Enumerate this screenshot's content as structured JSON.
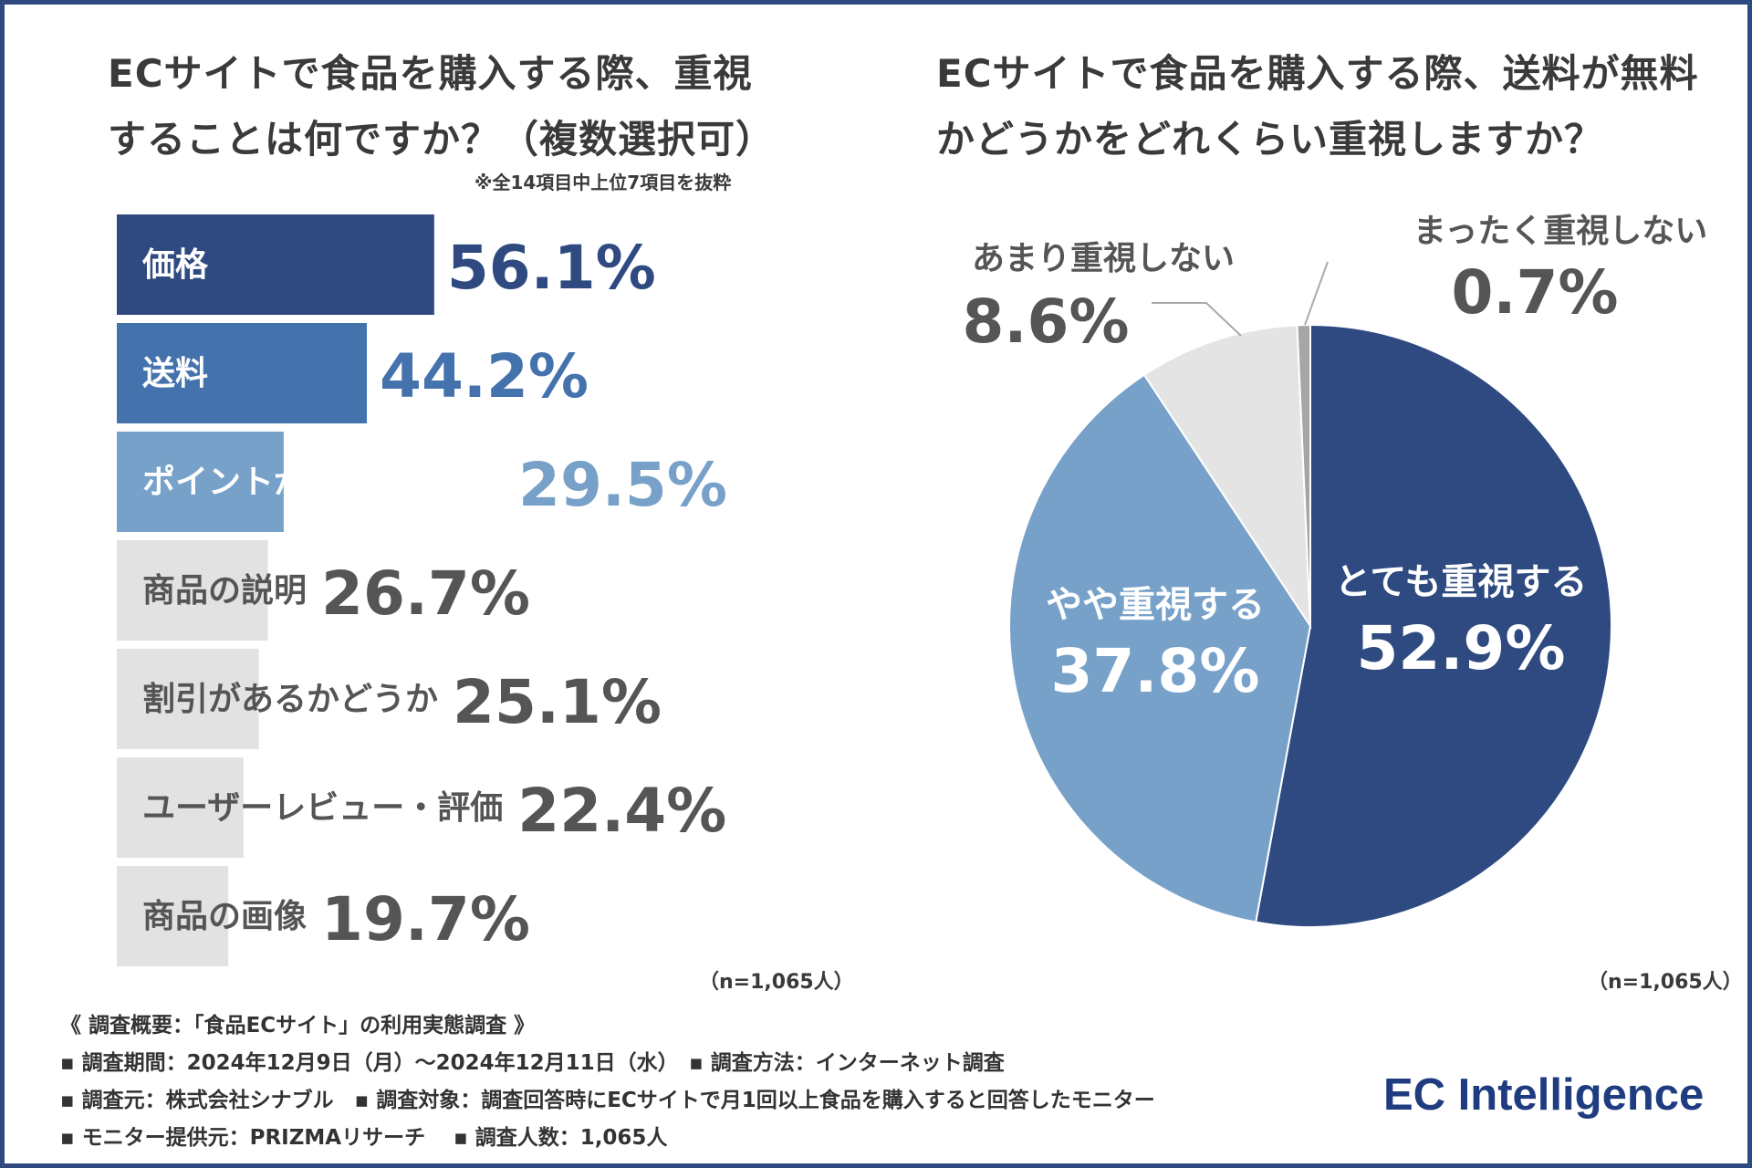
{
  "colors": {
    "frame": "#2e4a80",
    "dark_blue": "#2e4a80",
    "mid_blue": "#4472ad",
    "light_blue": "#77a1c9",
    "gray": "#e2e2e2",
    "very_light_gray": "#e4e4e4",
    "mid_gray": "#a6a6a6",
    "text_dark": "#3a3a3a",
    "value_gray": "#555555",
    "brand": "#1f3c80"
  },
  "left": {
    "title_line1": "ECサイトで食品を購入する際、重視",
    "title_line2": "することは何ですか？（複数選択可）",
    "note": "※全14項目中上位7項目を抜粋",
    "n_label": "（n=1,065人）"
  },
  "right": {
    "title_line1": "ECサイトで食品を購入する際、送料が無料",
    "title_line2": "かどうかをどれくらい重視しますか？",
    "n_label": "（n=1,065人）"
  },
  "footer": {
    "line1": "《 調査概要：「食品ECサイト」の利用実態調査 》",
    "line2": "▪ 調査期間：2024年12月9日（月）～2024年12月11日（水）　▪ 調査方法：インターネット調査",
    "line3": "▪ 調査元：株式会社シナブル　▪ 調査対象：調査回答時にECサイトで月1回以上食品を購入すると回答したモニター",
    "line4": "▪ モニター提供元：PRIZMAリサーチ　 ▪ 調査人数：1,065人"
  },
  "brand": "EC Intelligence",
  "chart_data": [
    {
      "type": "bar",
      "orientation": "horizontal",
      "title": "ECサイトで食品を購入する際、重視することは何ですか？（複数選択可）",
      "categories": [
        "価格",
        "送料",
        "ポイントが付くかどうか",
        "商品の説明",
        "割引があるかどうか",
        "ユーザーレビュー・評価",
        "商品の画像"
      ],
      "values": [
        56.1,
        44.2,
        29.5,
        26.7,
        25.1,
        22.4,
        19.7
      ],
      "labels": [
        "56.1%",
        "44.2%",
        "29.5%",
        "26.7%",
        "25.1%",
        "22.4%",
        "19.7%"
      ],
      "bar_colors": [
        "#2e4a80",
        "#4472ad",
        "#77a1c9",
        "#e2e2e2",
        "#e2e2e2",
        "#e2e2e2",
        "#e2e2e2"
      ],
      "value_colors": [
        "#2e4a80",
        "#4472ad",
        "#77a1c9",
        "#555555",
        "#555555",
        "#555555",
        "#555555"
      ],
      "category_colors": [
        "#ffffff",
        "#ffffff",
        "#ffffff",
        "#555555",
        "#555555",
        "#555555",
        "#555555"
      ],
      "xlim": [
        0,
        100
      ]
    },
    {
      "type": "pie",
      "title": "ECサイトで食品を購入する際、送料が無料かどうかをどれくらい重視しますか？",
      "start": "12 o'clock",
      "direction": "clockwise",
      "slices": [
        {
          "name": "とても重視する",
          "value": 52.9,
          "label": "52.9%",
          "color": "#2e4a80",
          "text_color": "#ffffff",
          "placement": "inside"
        },
        {
          "name": "やや重視する",
          "value": 37.8,
          "label": "37.8%",
          "color": "#77a1c9",
          "text_color": "#ffffff",
          "placement": "inside"
        },
        {
          "name": "あまり重視しない",
          "value": 8.6,
          "label": "8.6%",
          "color": "#e4e4e4",
          "text_color": "#555555",
          "placement": "outside"
        },
        {
          "name": "まったく重視しない",
          "value": 0.7,
          "label": "0.7%",
          "color": "#a6a6a6",
          "text_color": "#555555",
          "placement": "outside"
        }
      ]
    }
  ]
}
